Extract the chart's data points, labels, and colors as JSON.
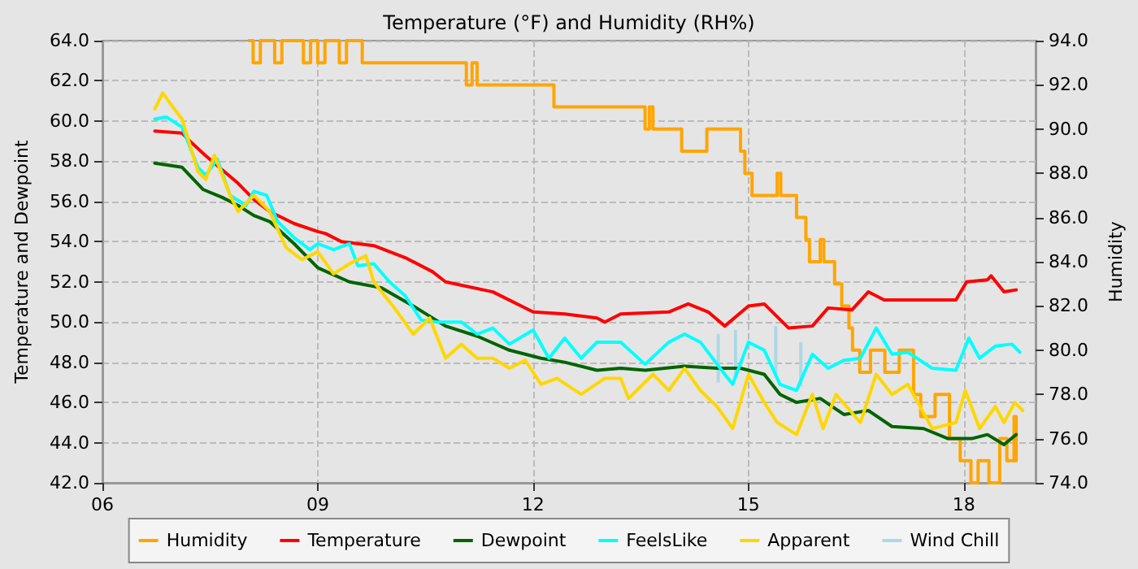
{
  "chart_data": {
    "type": "line",
    "title": "Temperature (°F) and Humidity (RH%)",
    "ylabel": "Temperature and Dewpoint",
    "y2label": "Humidity",
    "xlim": [
      6,
      19
    ],
    "xticks": [
      {
        "value": 6,
        "label": "06"
      },
      {
        "value": 9,
        "label": "09"
      },
      {
        "value": 12,
        "label": "12"
      },
      {
        "value": 15,
        "label": "15"
      },
      {
        "value": 18,
        "label": "18"
      }
    ],
    "ylim": [
      42,
      64
    ],
    "yticks": [
      {
        "value": 42,
        "label": "42.0"
      },
      {
        "value": 44,
        "label": "44.0"
      },
      {
        "value": 46,
        "label": "46.0"
      },
      {
        "value": 48,
        "label": "48.0"
      },
      {
        "value": 50,
        "label": "50.0"
      },
      {
        "value": 52,
        "label": "52.0"
      },
      {
        "value": 54,
        "label": "54.0"
      },
      {
        "value": 56,
        "label": "56.0"
      },
      {
        "value": 58,
        "label": "58.0"
      },
      {
        "value": 60,
        "label": "60.0"
      },
      {
        "value": 62,
        "label": "62.0"
      },
      {
        "value": 64,
        "label": "64.0"
      }
    ],
    "y2lim": [
      74,
      94
    ],
    "y2ticks": [
      {
        "value": 74,
        "label": "74.0"
      },
      {
        "value": 76,
        "label": "76.0"
      },
      {
        "value": 78,
        "label": "78.0"
      },
      {
        "value": 80,
        "label": "80.0"
      },
      {
        "value": 82,
        "label": "82.0"
      },
      {
        "value": 84,
        "label": "84.0"
      },
      {
        "value": 86,
        "label": "86.0"
      },
      {
        "value": 88,
        "label": "88.0"
      },
      {
        "value": 90,
        "label": "90.0"
      },
      {
        "value": 92,
        "label": "92.0"
      },
      {
        "value": 94,
        "label": "94.0"
      }
    ],
    "grid": true,
    "legend": "bottom",
    "marker": "none",
    "line_style": "solid",
    "series": [
      {
        "name": "Humidity",
        "type": "step",
        "axis": "y2",
        "color": "#ffa500",
        "x": [
          8.04,
          8.1,
          8.2,
          8.4,
          8.5,
          8.8,
          8.9,
          9.0,
          9.1,
          9.3,
          9.4,
          9.62,
          11.07,
          11.15,
          11.22,
          12.29,
          13.56,
          13.62,
          13.67,
          14.07,
          14.42,
          14.89,
          14.95,
          15.05,
          15.4,
          15.45,
          15.67,
          15.8,
          15.85,
          16.0,
          16.05,
          16.2,
          16.3,
          16.4,
          16.45,
          16.55,
          16.7,
          16.9,
          17.1,
          17.3,
          17.4,
          17.6,
          17.8,
          17.95,
          18.1,
          18.2,
          18.35,
          18.5,
          18.6,
          18.7,
          18.73
        ],
        "values": [
          94,
          93,
          94,
          93,
          94,
          93,
          94,
          93,
          94,
          93,
          94,
          93,
          92,
          93,
          92,
          91,
          90,
          91,
          90,
          89,
          90,
          89,
          88,
          87,
          88,
          87,
          86,
          85,
          84,
          85,
          84,
          83,
          82,
          81,
          80,
          79,
          80,
          79,
          80,
          78,
          77,
          78,
          76,
          75,
          74,
          75,
          74,
          76,
          75,
          77,
          75
        ]
      },
      {
        "name": "Temperature",
        "color": "#ff0000",
        "x": [
          6.73,
          7.11,
          7.22,
          7.4,
          7.56,
          7.89,
          8.11,
          8.33,
          8.67,
          9.0,
          9.11,
          9.33,
          9.78,
          10.22,
          10.6,
          10.78,
          11.44,
          12.0,
          12.44,
          12.89,
          13.0,
          13.22,
          13.89,
          14.16,
          14.44,
          14.67,
          15.0,
          15.22,
          15.56,
          15.89,
          16.11,
          16.44,
          16.67,
          16.89,
          17.33,
          17.89,
          18.04,
          18.33,
          18.38,
          18.56,
          18.73
        ],
        "values": [
          59.5,
          59.4,
          59.0,
          58.4,
          57.9,
          56.9,
          56.1,
          55.5,
          54.9,
          54.5,
          54.4,
          54.0,
          53.8,
          53.2,
          52.5,
          52.0,
          51.5,
          50.5,
          50.4,
          50.2,
          50.0,
          50.4,
          50.5,
          50.9,
          50.5,
          49.8,
          50.8,
          50.9,
          49.7,
          49.8,
          50.7,
          50.6,
          51.5,
          51.1,
          51.1,
          51.1,
          52.0,
          52.1,
          52.3,
          51.5,
          51.6
        ]
      },
      {
        "name": "Dewpoint",
        "color": "#006400",
        "x": [
          6.73,
          7.11,
          7.4,
          7.67,
          7.89,
          8.11,
          8.33,
          8.67,
          9.0,
          9.44,
          9.89,
          10.33,
          10.78,
          11.22,
          11.67,
          12.11,
          12.44,
          12.89,
          13.22,
          13.56,
          14.11,
          14.56,
          14.89,
          15.22,
          15.44,
          15.67,
          16.0,
          16.33,
          16.67,
          17.0,
          17.44,
          17.78,
          18.11,
          18.33,
          18.56,
          18.73
        ],
        "values": [
          57.9,
          57.7,
          56.6,
          56.2,
          55.8,
          55.3,
          55.0,
          53.9,
          52.7,
          52.0,
          51.7,
          50.8,
          49.8,
          49.3,
          48.6,
          48.2,
          48.0,
          47.6,
          47.7,
          47.6,
          47.8,
          47.7,
          47.7,
          47.4,
          46.4,
          46.0,
          46.2,
          45.4,
          45.6,
          44.8,
          44.7,
          44.2,
          44.2,
          44.4,
          43.9,
          44.4
        ]
      },
      {
        "name": "FeelsLike",
        "color": "#00ffff",
        "x": [
          6.73,
          6.89,
          7.11,
          7.33,
          7.44,
          7.6,
          7.78,
          8.0,
          8.11,
          8.29,
          8.44,
          8.67,
          8.89,
          9.0,
          9.22,
          9.44,
          9.56,
          9.78,
          10.0,
          10.22,
          10.44,
          10.67,
          11.0,
          11.22,
          11.44,
          11.67,
          12.0,
          12.22,
          12.44,
          12.67,
          12.89,
          13.22,
          13.56,
          13.89,
          14.11,
          14.33,
          14.67,
          14.78,
          15.0,
          15.22,
          15.44,
          15.67,
          15.89,
          16.11,
          16.33,
          16.56,
          16.78,
          17.0,
          17.22,
          17.56,
          17.89,
          18.07,
          18.22,
          18.44,
          18.67,
          18.78
        ],
        "values": [
          60.1,
          60.2,
          59.7,
          57.7,
          57.3,
          58.1,
          56.3,
          55.8,
          56.5,
          56.3,
          55.0,
          54.2,
          53.6,
          53.9,
          53.6,
          53.9,
          52.8,
          52.9,
          52.0,
          51.3,
          50.1,
          50.0,
          50.0,
          49.4,
          49.7,
          48.9,
          49.6,
          48.2,
          49.2,
          48.2,
          49.0,
          49.0,
          47.9,
          49.0,
          49.4,
          49.0,
          47.4,
          46.9,
          49.0,
          48.6,
          46.9,
          46.6,
          48.4,
          47.7,
          48.1,
          48.2,
          49.7,
          48.4,
          48.5,
          47.7,
          47.6,
          49.2,
          48.2,
          48.8,
          48.9,
          48.5
        ]
      },
      {
        "name": "Apparent",
        "color": "#ffd700",
        "x": [
          6.73,
          6.84,
          6.96,
          7.11,
          7.33,
          7.44,
          7.56,
          7.78,
          7.89,
          8.11,
          8.33,
          8.56,
          8.78,
          9.0,
          9.22,
          9.44,
          9.67,
          9.78,
          10.11,
          10.33,
          10.56,
          10.78,
          11.0,
          11.22,
          11.44,
          11.67,
          11.89,
          12.11,
          12.33,
          12.67,
          13.0,
          13.22,
          13.33,
          13.67,
          13.89,
          14.11,
          14.33,
          14.56,
          14.78,
          15.0,
          15.22,
          15.4,
          15.67,
          15.89,
          16.04,
          16.22,
          16.56,
          16.78,
          17.0,
          17.22,
          17.56,
          17.89,
          18.02,
          18.22,
          18.44,
          18.56,
          18.71,
          18.82
        ],
        "values": [
          60.6,
          61.4,
          60.8,
          60.1,
          57.5,
          57.1,
          58.3,
          56.3,
          55.5,
          56.3,
          55.5,
          53.7,
          53.1,
          53.5,
          52.4,
          52.9,
          53.3,
          52.0,
          50.5,
          49.4,
          50.2,
          48.2,
          48.9,
          48.2,
          48.2,
          47.7,
          48.1,
          46.9,
          47.2,
          46.4,
          47.2,
          47.2,
          46.2,
          47.4,
          46.6,
          47.7,
          46.6,
          45.8,
          44.7,
          47.4,
          46.0,
          45.0,
          44.4,
          46.4,
          44.7,
          46.4,
          45.0,
          47.4,
          46.4,
          46.9,
          44.7,
          45.0,
          46.6,
          44.7,
          45.8,
          45.0,
          46.0,
          45.6
        ]
      },
      {
        "name": "Wind Chill",
        "type": "bar",
        "color": "#add8e6",
        "x": [
          14.58,
          14.82,
          15.38,
          15.73
        ],
        "base": [
          47.0,
          47.2,
          47.4,
          46.8
        ],
        "values": [
          2.4,
          2.4,
          2.4,
          2.2
        ]
      }
    ]
  }
}
